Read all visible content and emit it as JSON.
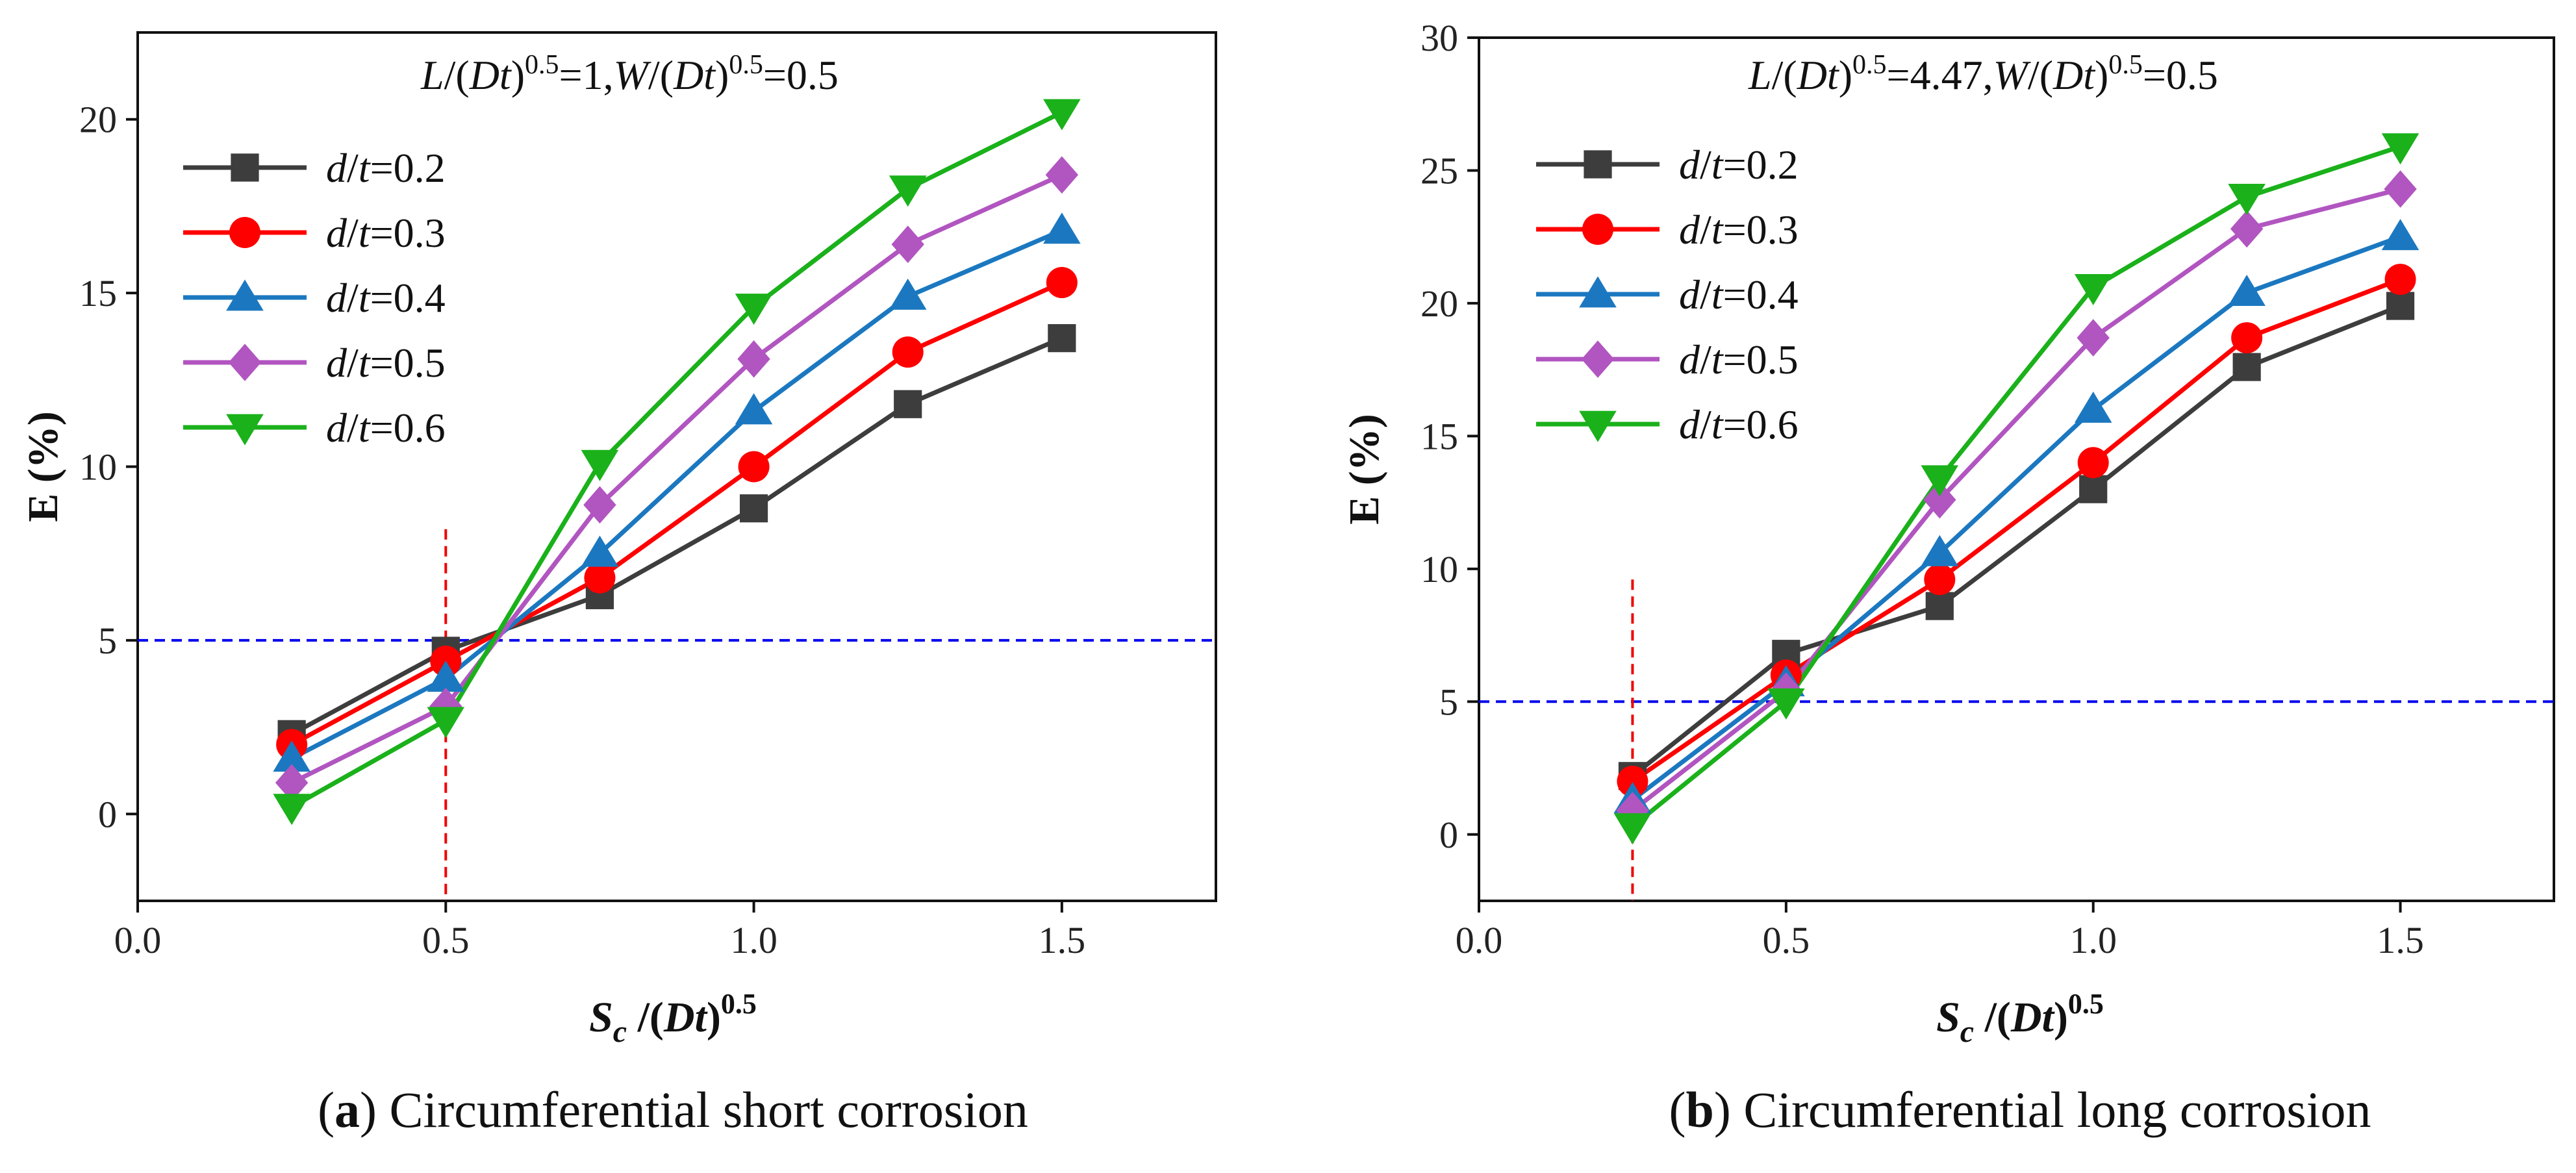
{
  "chart_data": [
    {
      "type": "line",
      "panel": "a",
      "title": "",
      "annotation": {
        "L_prefix": "L",
        "D": "D",
        "t": "t",
        "exp": "0.5",
        "L_value": "=1,",
        "W_prefix": "W",
        "W_value": "=0.5"
      },
      "xlabel": {
        "S": "S",
        "c": "c",
        "mid": " /(",
        "D": "D",
        "t": "t",
        "close": ")",
        "exp": "0.5"
      },
      "ylabel": "E (%)",
      "xlim": [
        0.0,
        1.75
      ],
      "ylim": [
        -2.5,
        22.5
      ],
      "xticks": [
        0.0,
        0.5,
        1.0,
        1.5
      ],
      "xtick_labels": [
        "0.0",
        "0.5",
        "1.0",
        "1.5"
      ],
      "yticks": [
        0,
        5,
        10,
        15,
        20
      ],
      "ytick_labels": [
        "0",
        "5",
        "10",
        "15",
        "20"
      ],
      "x": [
        0.25,
        0.5,
        0.75,
        1.0,
        1.25,
        1.5
      ],
      "series": [
        {
          "name_prefix": "d",
          "name_mid": "/",
          "name_t": "t",
          "name_value": "=0.2",
          "color": "#3d3d3d",
          "marker": "square",
          "values": [
            2.3,
            4.7,
            6.3,
            8.8,
            11.8,
            13.7
          ]
        },
        {
          "name_prefix": "d",
          "name_mid": "/",
          "name_t": "t",
          "name_value": "=0.3",
          "color": "#ff0000",
          "marker": "circle",
          "values": [
            2.0,
            4.4,
            6.8,
            10.0,
            13.3,
            15.3
          ]
        },
        {
          "name_prefix": "d",
          "name_mid": "/",
          "name_t": "t",
          "name_value": "=0.4",
          "color": "#1b78c0",
          "marker": "triangle-up",
          "values": [
            1.6,
            3.9,
            7.5,
            11.6,
            14.9,
            16.8
          ]
        },
        {
          "name_prefix": "d",
          "name_mid": "/",
          "name_t": "t",
          "name_value": "=0.5",
          "color": "#b155c0",
          "marker": "diamond",
          "values": [
            0.9,
            3.1,
            8.9,
            13.1,
            16.4,
            18.4
          ]
        },
        {
          "name_prefix": "d",
          "name_mid": "/",
          "name_t": "t",
          "name_value": "=0.6",
          "color": "#1ab11a",
          "marker": "triangle-down",
          "values": [
            0.2,
            2.7,
            10.1,
            14.6,
            18.0,
            20.2
          ]
        }
      ],
      "reference_lines": {
        "horizontal_y": 5.0,
        "vertical_x": 0.5,
        "h_color": "#0000ee",
        "v_color": "#ee0000"
      },
      "caption": {
        "letter": "a",
        "text": " Circumferential short corrosion"
      },
      "legend_position": "upper-left"
    },
    {
      "type": "line",
      "panel": "b",
      "title": "",
      "annotation": {
        "L_prefix": "L",
        "D": "D",
        "t": "t",
        "exp": "0.5",
        "L_value": "=4.47,",
        "W_prefix": "W",
        "W_value": "=0.5"
      },
      "xlabel": {
        "S": "S",
        "c": "c",
        "mid": " /(",
        "D": "D",
        "t": "t",
        "close": ")",
        "exp": "0.5"
      },
      "ylabel": "E (%)",
      "xlim": [
        0.0,
        1.75
      ],
      "ylim": [
        -2.5,
        30.0
      ],
      "xticks": [
        0.0,
        0.5,
        1.0,
        1.5
      ],
      "xtick_labels": [
        "0.0",
        "0.5",
        "1.0",
        "1.5"
      ],
      "yticks": [
        0,
        5,
        10,
        15,
        20,
        25,
        30
      ],
      "ytick_labels": [
        "0",
        "5",
        "10",
        "15",
        "20",
        "25",
        "30"
      ],
      "x": [
        0.25,
        0.5,
        0.75,
        1.0,
        1.25,
        1.5
      ],
      "series": [
        {
          "name_prefix": "d",
          "name_mid": "/",
          "name_t": "t",
          "name_value": "=0.2",
          "color": "#3d3d3d",
          "marker": "square",
          "values": [
            2.2,
            6.8,
            8.6,
            13.0,
            17.6,
            19.9
          ]
        },
        {
          "name_prefix": "d",
          "name_mid": "/",
          "name_t": "t",
          "name_value": "=0.3",
          "color": "#ff0000",
          "marker": "circle",
          "values": [
            2.0,
            6.0,
            9.6,
            14.0,
            18.7,
            20.9
          ]
        },
        {
          "name_prefix": "d",
          "name_mid": "/",
          "name_t": "t",
          "name_value": "=0.4",
          "color": "#1b78c0",
          "marker": "triangle-up",
          "values": [
            1.3,
            5.7,
            10.6,
            16.0,
            20.4,
            22.5
          ]
        },
        {
          "name_prefix": "d",
          "name_mid": "/",
          "name_t": "t",
          "name_value": "=0.5",
          "color": "#b155c0",
          "marker": "diamond",
          "values": [
            0.9,
            5.4,
            12.6,
            18.7,
            22.8,
            24.3
          ]
        },
        {
          "name_prefix": "d",
          "name_mid": "/",
          "name_t": "t",
          "name_value": "=0.6",
          "color": "#1ab11a",
          "marker": "triangle-down",
          "values": [
            0.3,
            5.0,
            13.4,
            20.6,
            24.0,
            25.9
          ]
        }
      ],
      "reference_lines": {
        "horizontal_y": 5.0,
        "vertical_x": 0.25,
        "h_color": "#0000ee",
        "v_color": "#ee0000"
      },
      "caption": {
        "letter": "b",
        "text": " Circumferential long corrosion"
      },
      "legend_position": "upper-left"
    }
  ]
}
